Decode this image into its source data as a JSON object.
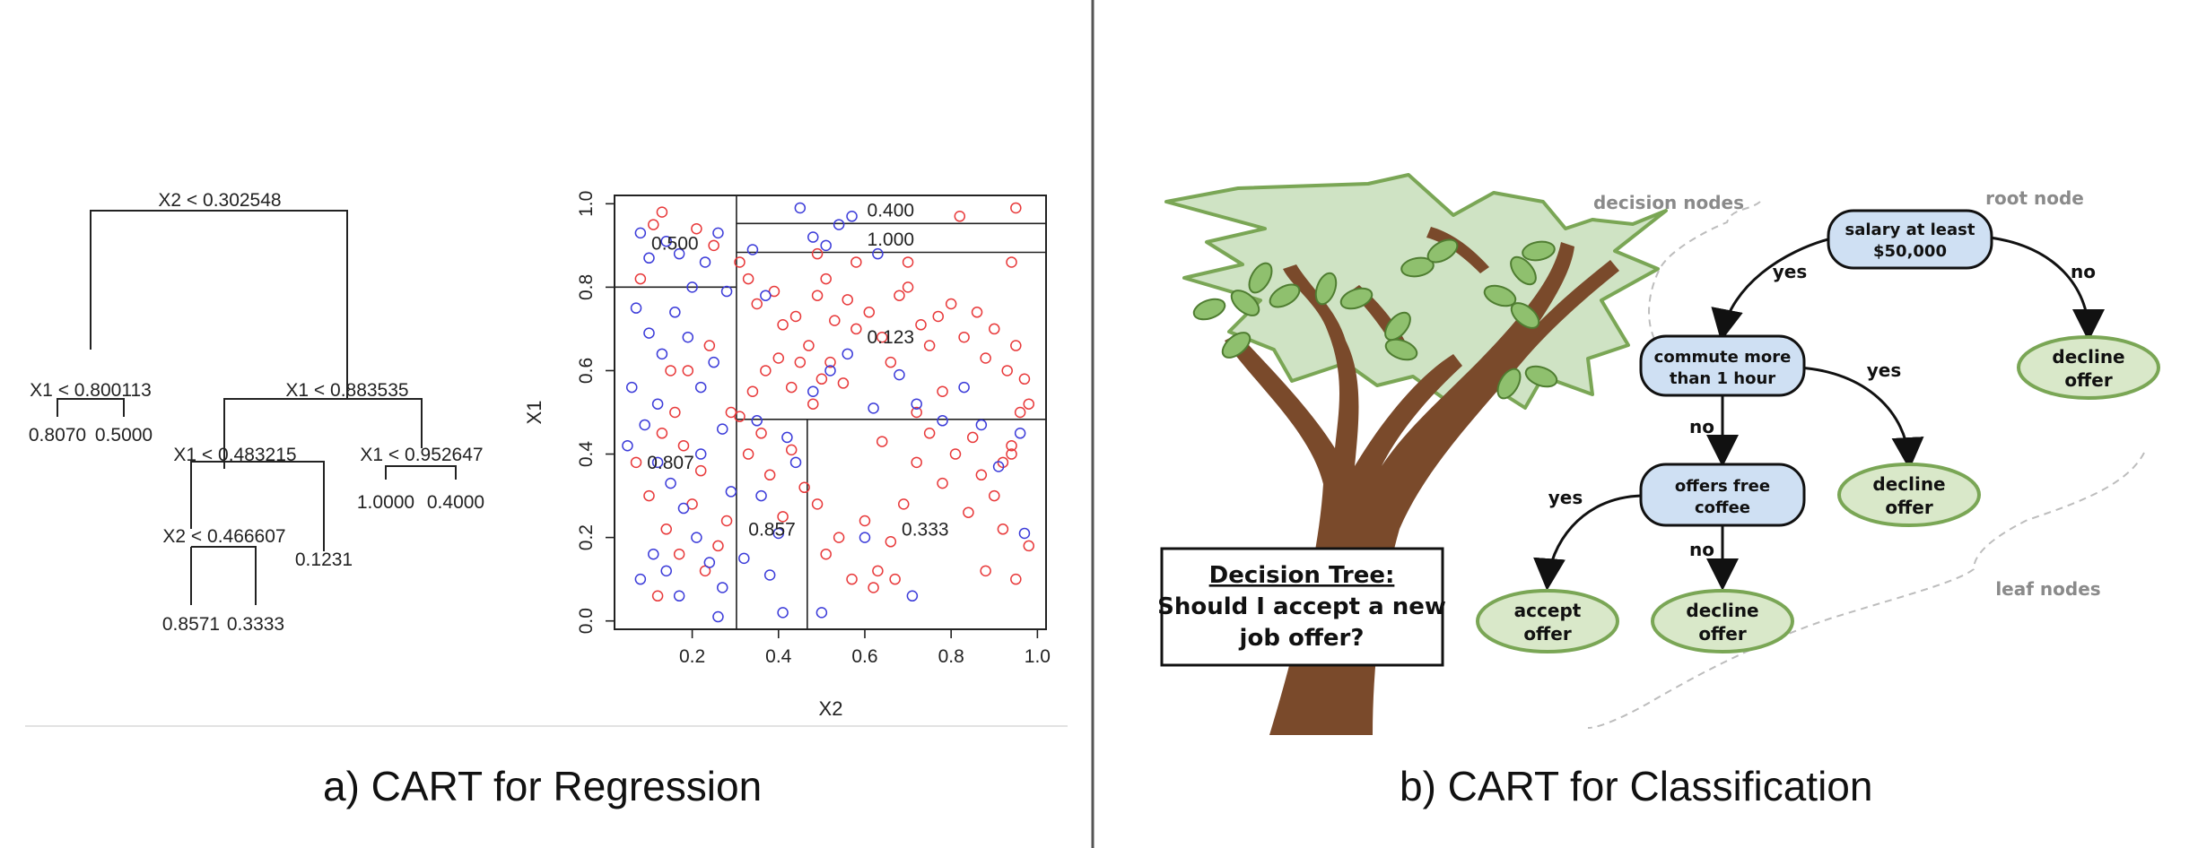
{
  "captions": {
    "left": "a) CART for Regression",
    "right": "b) CART for Classification"
  },
  "regression_tree": {
    "splits": [
      "X2 < 0.302548",
      "X1 < 0.800113",
      "X1 < 0.883535",
      "X1 < 0.483215",
      "X1 < 0.952647",
      "X2 < 0.466607"
    ],
    "leaves": [
      "0.8070",
      "0.5000",
      "1.0000",
      "0.4000",
      "0.1231",
      "0.8571",
      "0.3333"
    ]
  },
  "chart_data": {
    "type": "scatter",
    "xlabel": "X2",
    "ylabel": "X1",
    "xlim": [
      0.02,
      1.02
    ],
    "ylim": [
      -0.02,
      1.02
    ],
    "x_ticks": [
      "0.2",
      "0.4",
      "0.6",
      "0.8",
      "1.0"
    ],
    "y_ticks": [
      "0.0",
      "0.2",
      "0.4",
      "0.6",
      "0.8",
      "1.0"
    ],
    "partition_lines": {
      "vertical": [
        {
          "x": 0.302548,
          "y0": -0.02,
          "y1": 1.02
        },
        {
          "x": 0.466607,
          "y0": -0.02,
          "y1": 0.483215
        }
      ],
      "horizontal": [
        {
          "y": 0.800113,
          "x0": 0.02,
          "x1": 0.302548
        },
        {
          "y": 0.952647,
          "x0": 0.302548,
          "x1": 1.02
        },
        {
          "y": 0.883535,
          "x0": 0.302548,
          "x1": 1.02
        },
        {
          "y": 0.483215,
          "x0": 0.302548,
          "x1": 1.02
        }
      ]
    },
    "region_labels": [
      {
        "text": "0.500",
        "x": 0.16,
        "y": 0.905
      },
      {
        "text": "0.400",
        "x": 0.66,
        "y": 0.985
      },
      {
        "text": "1.000",
        "x": 0.66,
        "y": 0.915
      },
      {
        "text": "0.123",
        "x": 0.66,
        "y": 0.68
      },
      {
        "text": "0.807",
        "x": 0.15,
        "y": 0.38
      },
      {
        "text": "0.857",
        "x": 0.385,
        "y": 0.22
      },
      {
        "text": "0.333",
        "x": 0.74,
        "y": 0.22
      }
    ],
    "series": [
      {
        "color": "#e8393a",
        "points": [
          [
            0.13,
            0.98
          ],
          [
            0.11,
            0.95
          ],
          [
            0.21,
            0.94
          ],
          [
            0.25,
            0.9
          ],
          [
            0.31,
            0.86
          ],
          [
            0.33,
            0.82
          ],
          [
            0.35,
            0.76
          ],
          [
            0.39,
            0.79
          ],
          [
            0.41,
            0.71
          ],
          [
            0.44,
            0.73
          ],
          [
            0.47,
            0.66
          ],
          [
            0.49,
            0.78
          ],
          [
            0.51,
            0.82
          ],
          [
            0.53,
            0.72
          ],
          [
            0.56,
            0.77
          ],
          [
            0.58,
            0.7
          ],
          [
            0.61,
            0.74
          ],
          [
            0.64,
            0.68
          ],
          [
            0.66,
            0.62
          ],
          [
            0.68,
            0.78
          ],
          [
            0.7,
            0.8
          ],
          [
            0.73,
            0.71
          ],
          [
            0.75,
            0.66
          ],
          [
            0.77,
            0.73
          ],
          [
            0.8,
            0.76
          ],
          [
            0.83,
            0.68
          ],
          [
            0.86,
            0.74
          ],
          [
            0.88,
            0.63
          ],
          [
            0.9,
            0.7
          ],
          [
            0.93,
            0.6
          ],
          [
            0.95,
            0.66
          ],
          [
            0.97,
            0.58
          ],
          [
            0.98,
            0.52
          ],
          [
            0.96,
            0.5
          ],
          [
            0.94,
            0.42
          ],
          [
            0.92,
            0.38
          ],
          [
            0.9,
            0.3
          ],
          [
            0.87,
            0.35
          ],
          [
            0.84,
            0.26
          ],
          [
            0.81,
            0.4
          ],
          [
            0.78,
            0.33
          ],
          [
            0.75,
            0.45
          ],
          [
            0.72,
            0.38
          ],
          [
            0.69,
            0.28
          ],
          [
            0.66,
            0.19
          ],
          [
            0.63,
            0.12
          ],
          [
            0.6,
            0.24
          ],
          [
            0.57,
            0.1
          ],
          [
            0.54,
            0.2
          ],
          [
            0.51,
            0.16
          ],
          [
            0.49,
            0.28
          ],
          [
            0.46,
            0.32
          ],
          [
            0.43,
            0.41
          ],
          [
            0.41,
            0.25
          ],
          [
            0.38,
            0.35
          ],
          [
            0.36,
            0.45
          ],
          [
            0.33,
            0.4
          ],
          [
            0.31,
            0.49
          ],
          [
            0.34,
            0.55
          ],
          [
            0.37,
            0.6
          ],
          [
            0.4,
            0.63
          ],
          [
            0.43,
            0.56
          ],
          [
            0.45,
            0.62
          ],
          [
            0.48,
            0.52
          ],
          [
            0.5,
            0.58
          ],
          [
            0.52,
            0.62
          ],
          [
            0.55,
            0.57
          ],
          [
            0.94,
            0.86
          ],
          [
            0.95,
            0.99
          ],
          [
            0.82,
            0.97
          ],
          [
            0.7,
            0.86
          ],
          [
            0.58,
            0.86
          ],
          [
            0.49,
            0.88
          ],
          [
            0.07,
            0.38
          ],
          [
            0.1,
            0.3
          ],
          [
            0.14,
            0.22
          ],
          [
            0.17,
            0.16
          ],
          [
            0.2,
            0.28
          ],
          [
            0.23,
            0.12
          ],
          [
            0.26,
            0.18
          ],
          [
            0.12,
            0.06
          ],
          [
            0.18,
            0.42
          ],
          [
            0.22,
            0.36
          ],
          [
            0.28,
            0.24
          ],
          [
            0.15,
            0.6
          ],
          [
            0.19,
            0.6
          ],
          [
            0.16,
            0.5
          ],
          [
            0.24,
            0.66
          ],
          [
            0.29,
            0.5
          ],
          [
            0.08,
            0.82
          ],
          [
            0.13,
            0.45
          ],
          [
            0.95,
            0.1
          ],
          [
            0.92,
            0.22
          ],
          [
            0.88,
            0.12
          ],
          [
            0.67,
            0.1
          ],
          [
            0.62,
            0.08
          ],
          [
            0.98,
            0.18
          ],
          [
            0.94,
            0.4
          ],
          [
            0.85,
            0.44
          ],
          [
            0.78,
            0.55
          ],
          [
            0.72,
            0.5
          ],
          [
            0.64,
            0.43
          ]
        ]
      },
      {
        "color": "#3b3bd9",
        "points": [
          [
            0.08,
            0.93
          ],
          [
            0.1,
            0.87
          ],
          [
            0.14,
            0.91
          ],
          [
            0.17,
            0.88
          ],
          [
            0.2,
            0.8
          ],
          [
            0.23,
            0.86
          ],
          [
            0.26,
            0.93
          ],
          [
            0.28,
            0.79
          ],
          [
            0.07,
            0.75
          ],
          [
            0.1,
            0.69
          ],
          [
            0.13,
            0.64
          ],
          [
            0.16,
            0.74
          ],
          [
            0.19,
            0.68
          ],
          [
            0.22,
            0.56
          ],
          [
            0.25,
            0.62
          ],
          [
            0.06,
            0.56
          ],
          [
            0.09,
            0.47
          ],
          [
            0.12,
            0.38
          ],
          [
            0.15,
            0.33
          ],
          [
            0.18,
            0.27
          ],
          [
            0.21,
            0.2
          ],
          [
            0.24,
            0.14
          ],
          [
            0.27,
            0.08
          ],
          [
            0.08,
            0.1
          ],
          [
            0.11,
            0.16
          ],
          [
            0.14,
            0.12
          ],
          [
            0.17,
            0.06
          ],
          [
            0.26,
            0.01
          ],
          [
            0.05,
            0.42
          ],
          [
            0.12,
            0.52
          ],
          [
            0.34,
            0.89
          ],
          [
            0.37,
            0.78
          ],
          [
            0.45,
            0.99
          ],
          [
            0.48,
            0.92
          ],
          [
            0.51,
            0.9
          ],
          [
            0.54,
            0.95
          ],
          [
            0.57,
            0.97
          ],
          [
            0.63,
            0.88
          ],
          [
            0.48,
            0.55
          ],
          [
            0.52,
            0.6
          ],
          [
            0.56,
            0.64
          ],
          [
            0.62,
            0.51
          ],
          [
            0.68,
            0.59
          ],
          [
            0.72,
            0.52
          ],
          [
            0.78,
            0.48
          ],
          [
            0.83,
            0.56
          ],
          [
            0.87,
            0.47
          ],
          [
            0.91,
            0.37
          ],
          [
            0.97,
            0.21
          ],
          [
            0.96,
            0.45
          ],
          [
            0.36,
            0.3
          ],
          [
            0.4,
            0.21
          ],
          [
            0.42,
            0.44
          ],
          [
            0.44,
            0.38
          ],
          [
            0.38,
            0.11
          ],
          [
            0.41,
            0.02
          ],
          [
            0.35,
            0.48
          ],
          [
            0.5,
            0.02
          ],
          [
            0.71,
            0.06
          ],
          [
            0.6,
            0.2
          ],
          [
            0.27,
            0.46
          ],
          [
            0.22,
            0.4
          ],
          [
            0.32,
            0.15
          ],
          [
            0.29,
            0.31
          ]
        ]
      }
    ]
  },
  "decision_tree": {
    "title_line1": "Decision Tree:",
    "title_line2": "Should I accept a new",
    "title_line3": "job offer?",
    "annotations": {
      "decision_nodes": "decision nodes",
      "root_node": "root node",
      "leaf_nodes": "leaf nodes"
    },
    "root": {
      "line1": "salary at least",
      "line2": "$50,000"
    },
    "node2": {
      "line1": "commute more",
      "line2": "than 1 hour"
    },
    "node3": {
      "line1": "offers free",
      "line2": "coffee"
    },
    "leaf_root_no": {
      "line1": "decline",
      "line2": "offer"
    },
    "leaf_commute_yes": {
      "line1": "decline",
      "line2": "offer"
    },
    "leaf_coffee_yes": {
      "line1": "accept",
      "line2": "offer"
    },
    "leaf_coffee_no": {
      "line1": "decline",
      "line2": "offer"
    },
    "edges": {
      "root_yes": "yes",
      "root_no": "no",
      "commute_yes": "yes",
      "commute_no": "no",
      "coffee_yes": "yes",
      "coffee_no": "no"
    },
    "colors": {
      "decision_fill": "#cfe0f3",
      "leaf_fill": "#d9e8c9",
      "leaf_stroke": "#7aa655",
      "canopy_fill": "#cfe3c4",
      "trunk": "#7a4a2b"
    }
  }
}
